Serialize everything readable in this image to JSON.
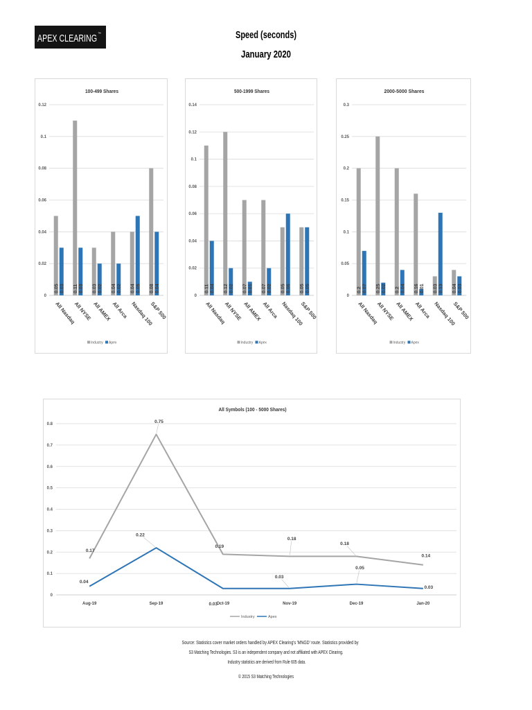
{
  "logo": {
    "text": "APEX CLEARING",
    "mark": "™"
  },
  "header": {
    "title": "Speed (seconds)",
    "subtitle": "January 2020"
  },
  "chart_data": [
    {
      "type": "bar",
      "title": "100-499 Shares",
      "categories": [
        "All Nasdaq",
        "All NYSE",
        "All AMEX",
        "All Arca",
        "Nasdaq 100",
        "S&P 500"
      ],
      "series": [
        {
          "name": "Industry",
          "color": "#a5a5a5",
          "values": [
            0.05,
            0.11,
            0.03,
            0.04,
            0.04,
            0.08
          ]
        },
        {
          "name": "Apex",
          "color": "#2e75b6",
          "values": [
            0.03,
            0.03,
            0.02,
            0.02,
            0.05,
            0.04
          ]
        }
      ],
      "ylim": [
        0,
        0.12
      ],
      "yticks": [
        0,
        0.02,
        0.04,
        0.06,
        0.08,
        0.1,
        0.12
      ],
      "grid": true,
      "data_labels": true,
      "legend_position": "bottom"
    },
    {
      "type": "bar",
      "title": "500-1999 Shares",
      "categories": [
        "All Nasdaq",
        "All NYSE",
        "All AMEX",
        "All Arca",
        "Nasdaq 100",
        "S&P 500"
      ],
      "series": [
        {
          "name": "Industry",
          "color": "#a5a5a5",
          "values": [
            0.11,
            0.12,
            0.07,
            0.07,
            0.05,
            0.05
          ]
        },
        {
          "name": "Apex",
          "color": "#2e75b6",
          "values": [
            0.04,
            0.02,
            0.01,
            0.02,
            0.06,
            0.05
          ]
        }
      ],
      "ylim": [
        0,
        0.14
      ],
      "yticks": [
        0,
        0.02,
        0.04,
        0.06,
        0.08,
        0.1,
        0.12,
        0.14
      ],
      "grid": true,
      "data_labels": true,
      "legend_position": "bottom"
    },
    {
      "type": "bar",
      "title": "2000-5000 Shares",
      "categories": [
        "All Nasdaq",
        "All NYSE",
        "All AMEX",
        "All Arca",
        "Nasdaq 100",
        "S&P 500"
      ],
      "series": [
        {
          "name": "Industry",
          "color": "#a5a5a5",
          "values": [
            0.2,
            0.25,
            0.2,
            0.16,
            0.03,
            0.04
          ]
        },
        {
          "name": "Apex",
          "color": "#2e75b6",
          "values": [
            0.07,
            0.02,
            0.04,
            0.01,
            0.13,
            0.03
          ]
        }
      ],
      "ylim": [
        0,
        0.3
      ],
      "yticks": [
        0,
        0.05,
        0.1,
        0.15,
        0.2,
        0.25,
        0.3
      ],
      "grid": true,
      "data_labels": true,
      "legend_position": "bottom"
    },
    {
      "type": "line",
      "title": "All Symbols (100 - 5000 Shares)",
      "categories": [
        "Aug-19",
        "Sep-19",
        "Oct-19",
        "Nov-19",
        "Dec-19",
        "Jan-20"
      ],
      "series": [
        {
          "name": "Industry",
          "color": "#a5a5a5",
          "values": [
            0.17,
            0.75,
            0.19,
            0.18,
            0.18,
            0.14
          ]
        },
        {
          "name": "Apex",
          "color": "#2e75b6",
          "values": [
            0.04,
            0.22,
            0.03,
            0.03,
            0.05,
            0.03
          ]
        }
      ],
      "ylim": [
        0,
        0.8
      ],
      "yticks": [
        0,
        0.1,
        0.2,
        0.3,
        0.4,
        0.5,
        0.6,
        0.7,
        0.8
      ],
      "grid": true,
      "data_labels": true,
      "legend_position": "bottom"
    }
  ],
  "footer": {
    "source_lines": [
      "Source:  Statistics cover market orders handled by APEX Clearing's 'MNGD' route.  Statistics provided by",
      "S3 Matching Technologies.  S3 is an independent company and not affiliated with APEX Clearing.",
      "Industry statistics are derived from Rule 605 data."
    ],
    "copyright": "© 2015 S3 Matching Technologies"
  }
}
